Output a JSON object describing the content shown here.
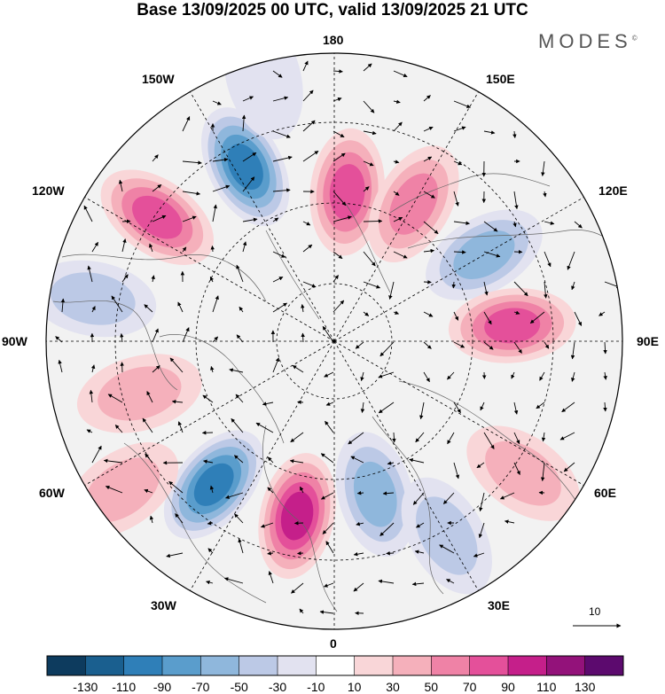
{
  "title": "Base 13/09/2025 00 UTC, valid 13/09/2025 21 UTC",
  "brand": "MODES",
  "brand_mark": "©",
  "longitude_labels": {
    "top": "180",
    "top_left": "150W",
    "top_right": "150E",
    "upper_left": "120W",
    "upper_right": "120E",
    "left": "90W",
    "right": "90E",
    "lower_left": "60W",
    "lower_right": "60E",
    "bottom_left": "30W",
    "bottom_right": "30E",
    "bottom": "0"
  },
  "reference_vector": {
    "label": "10"
  },
  "colorbar": {
    "colors": [
      "#0d3b5e",
      "#1a5f8f",
      "#2f7fb8",
      "#5a9dcc",
      "#8fb7dc",
      "#bcc9e6",
      "#e2e2f0",
      "#ffffff",
      "#f9d6d8",
      "#f5b0bb",
      "#ef82a6",
      "#e4509a",
      "#c51f8a",
      "#93127a",
      "#5c0a6e"
    ],
    "labels": [
      "-130",
      "-110",
      "-90",
      "-70",
      "-50",
      "-30",
      "-10",
      "10",
      "30",
      "50",
      "70",
      "90",
      "110",
      "130"
    ]
  },
  "anomaly_centers": [
    {
      "lon": -153,
      "colat": 0.68,
      "value": -95
    },
    {
      "lon": 175,
      "colat": 0.52,
      "value": 85
    },
    {
      "lon": -125,
      "colat": 0.75,
      "value": 70
    },
    {
      "lon": 150,
      "colat": 0.55,
      "value": 55
    },
    {
      "lon": 120,
      "colat": 0.6,
      "value": -60
    },
    {
      "lon": 95,
      "colat": 0.62,
      "value": 80
    },
    {
      "lon": -40,
      "colat": 0.65,
      "value": -100
    },
    {
      "lon": -12,
      "colat": 0.62,
      "value": 105
    },
    {
      "lon": 15,
      "colat": 0.55,
      "value": -50
    },
    {
      "lon": 30,
      "colat": 0.78,
      "value": -45
    },
    {
      "lon": 55,
      "colat": 0.8,
      "value": 40
    },
    {
      "lon": -75,
      "colat": 0.7,
      "value": 40
    },
    {
      "lon": -100,
      "colat": 0.85,
      "value": -30
    },
    {
      "lon": -55,
      "colat": 0.9,
      "value": 30
    },
    {
      "lon": -165,
      "colat": 0.95,
      "value": -20
    }
  ]
}
